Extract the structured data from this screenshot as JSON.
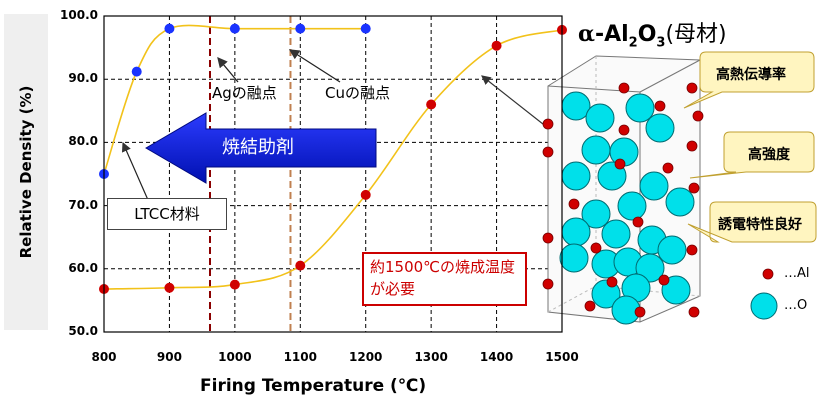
{
  "chart_data": {
    "type": "line",
    "xlabel": "Firing Temperature (℃)",
    "ylabel": "Relative Density (%)",
    "xlim": [
      800,
      1500
    ],
    "ylim": [
      50,
      100
    ],
    "x_ticks": [
      "800",
      "900",
      "1000",
      "1100",
      "1200",
      "1300",
      "1400",
      "1500"
    ],
    "y_ticks": [
      "50.0",
      "60.0",
      "70.0",
      "80.0",
      "90.0",
      "100.0"
    ],
    "grid": true,
    "series": [
      {
        "name": "LTCC材料",
        "color": "#1a33ff",
        "x": [
          800,
          850,
          900,
          1000,
          1100,
          1200
        ],
        "y": [
          75,
          91.2,
          98,
          98,
          98,
          98
        ]
      },
      {
        "name": "α-Al2O3(母材)",
        "color": "#d00000",
        "x": [
          800,
          900,
          1000,
          1100,
          1200,
          1300,
          1400,
          1500
        ],
        "y": [
          56.8,
          57,
          57.5,
          60.5,
          71.7,
          86,
          95.3,
          97.8
        ]
      }
    ],
    "reference_lines": [
      {
        "label": "Agの融点",
        "x": 962,
        "color": "#8b0000"
      },
      {
        "label": "Cuの融点",
        "x": 1085,
        "color": "#c08050"
      }
    ],
    "annotations": {
      "sintering_aid": "焼結助剤",
      "ltcc": "LTCC材料",
      "note": "約1500℃の焼成温度が必要"
    }
  },
  "mineral": {
    "alpha": "α",
    "formula_main": "-Al",
    "sub2": "2",
    "formula_o": "O",
    "sub3": "3",
    "suffix": "(母材)"
  },
  "callouts": [
    "高熱伝導率",
    "高強度",
    "誘電特性良好"
  ],
  "legend": {
    "al": "…Al",
    "o": "…O",
    "al_color": "#d00000",
    "o_color": "#00e0ea"
  }
}
